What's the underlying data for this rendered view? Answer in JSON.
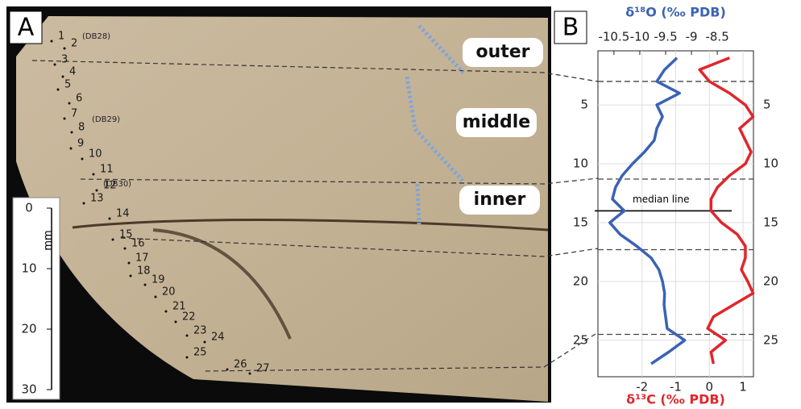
{
  "panel_a": {
    "label": "A",
    "samples": [
      "1",
      "2",
      "3",
      "4",
      "5",
      "6",
      "7",
      "8",
      "9",
      "10",
      "11",
      "12",
      "13",
      "14",
      "15",
      "16",
      "17",
      "18",
      "19",
      "20",
      "21",
      "22",
      "23",
      "24",
      "25",
      "26",
      "27"
    ],
    "sample_groups": [
      "(DB28)",
      "(DB29)",
      "(DB30)"
    ],
    "zones": [
      "outer",
      "middle",
      "inner"
    ],
    "scale_bar": {
      "unit": "mm",
      "ticks": [
        0,
        10,
        20,
        30
      ]
    }
  },
  "chart_data": {
    "type": "line",
    "label": "B",
    "x": [
      1,
      2,
      3,
      4,
      5,
      6,
      7,
      8,
      9,
      10,
      11,
      12,
      13,
      14,
      15,
      16,
      17,
      18,
      19,
      20,
      21,
      22,
      23,
      24,
      25,
      26,
      27
    ],
    "series": [
      {
        "name": "δ¹⁸O (‰ PDB)",
        "color": "#3b62b5",
        "axis": "x2",
        "values": [
          -9.28,
          -9.52,
          -9.67,
          -9.23,
          -9.67,
          -9.56,
          -9.67,
          -9.72,
          -9.91,
          -10.14,
          -10.34,
          -10.47,
          -10.53,
          -10.3,
          -10.58,
          -10.38,
          -10.06,
          -9.78,
          -9.63,
          -9.56,
          -9.52,
          -9.53,
          -9.5,
          -9.47,
          -9.13,
          -9.44,
          -9.78
        ]
      },
      {
        "name": "δ¹³C (‰ PDB)",
        "color": "#e0262b",
        "axis": "x",
        "values": [
          0.6,
          -0.29,
          0,
          0.6,
          1.07,
          1.3,
          0.9,
          1.07,
          1.24,
          1.07,
          0.6,
          0.24,
          0.05,
          0.05,
          0.36,
          0.83,
          1.07,
          1.07,
          0.95,
          1.14,
          1.3,
          0.71,
          0.12,
          -0.05,
          0.48,
          0.05,
          0.12
        ]
      }
    ],
    "xlim": [
      -3.31,
      1.31
    ],
    "xticks": [
      -2,
      -1,
      0,
      1
    ],
    "x2lim": [
      -10.81,
      -7.8
    ],
    "x2ticks": [
      -10.5,
      -10,
      -9.5,
      -9,
      -8.5
    ],
    "ylim": [
      0.4,
      28.1
    ],
    "y_inverted": true,
    "yticks": [
      5,
      10,
      15,
      20,
      25
    ],
    "grid": true,
    "reference_lines": [
      3,
      11.3,
      17.3,
      24.5
    ],
    "median_line": {
      "label": "median line",
      "value": 14
    }
  }
}
